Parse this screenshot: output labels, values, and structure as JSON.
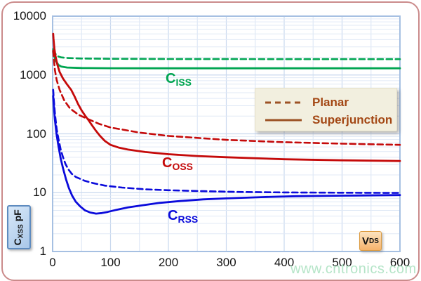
{
  "chart_data": {
    "type": "line",
    "title": "",
    "xlabel": "VDS",
    "ylabel": "CXSS pF",
    "grid": true,
    "legend_position": "upper-right-inside",
    "x_axis": {
      "min": 0,
      "max": 600,
      "ticks": [
        0,
        100,
        200,
        300,
        400,
        500,
        600
      ],
      "minor_step": 50
    },
    "y_axis": {
      "scale": "log",
      "min": 1,
      "max": 10000,
      "ticks": [
        "10000",
        "1000",
        "100",
        "10",
        "1"
      ]
    },
    "series": [
      {
        "id": "ciss_planar",
        "name": "CISS Planar",
        "color": "#00A551",
        "style": "dashed",
        "points": [
          [
            1,
            2750
          ],
          [
            3,
            2450
          ],
          [
            6,
            2200
          ],
          [
            10,
            2060
          ],
          [
            15,
            1990
          ],
          [
            25,
            1940
          ],
          [
            50,
            1905
          ],
          [
            100,
            1885
          ],
          [
            200,
            1870
          ],
          [
            300,
            1865
          ],
          [
            450,
            1860
          ],
          [
            600,
            1860
          ]
        ]
      },
      {
        "id": "ciss_superjunction",
        "name": "CISS Superjunction",
        "color": "#00A551",
        "style": "solid",
        "points": [
          [
            1,
            2500
          ],
          [
            3,
            2050
          ],
          [
            6,
            1700
          ],
          [
            10,
            1480
          ],
          [
            15,
            1390
          ],
          [
            25,
            1340
          ],
          [
            50,
            1315
          ],
          [
            100,
            1305
          ],
          [
            200,
            1300
          ],
          [
            400,
            1300
          ],
          [
            600,
            1300
          ]
        ]
      },
      {
        "id": "coss_planar",
        "name": "COSS Planar",
        "color": "#C50A0A",
        "style": "dashed",
        "points": [
          [
            1,
            2600
          ],
          [
            2,
            1900
          ],
          [
            4,
            1200
          ],
          [
            7,
            820
          ],
          [
            12,
            560
          ],
          [
            20,
            370
          ],
          [
            30,
            270
          ],
          [
            45,
            210
          ],
          [
            60,
            180
          ],
          [
            80,
            148
          ],
          [
            100,
            128
          ],
          [
            150,
            105
          ],
          [
            200,
            92
          ],
          [
            300,
            79
          ],
          [
            400,
            72
          ],
          [
            500,
            68
          ],
          [
            600,
            65
          ]
        ]
      },
      {
        "id": "coss_superjunction",
        "name": "COSS Superjunction",
        "color": "#C50A0A",
        "style": "solid",
        "points": [
          [
            1,
            5000
          ],
          [
            1.5,
            4200
          ],
          [
            2,
            3600
          ],
          [
            3,
            2800
          ],
          [
            5,
            2100
          ],
          [
            8,
            1520
          ],
          [
            12,
            1130
          ],
          [
            18,
            870
          ],
          [
            25,
            690
          ],
          [
            32,
            560
          ],
          [
            38,
            430
          ],
          [
            44,
            320
          ],
          [
            50,
            250
          ],
          [
            56,
            205
          ],
          [
            62,
            170
          ],
          [
            68,
            140
          ],
          [
            75,
            112
          ],
          [
            82,
            92
          ],
          [
            90,
            76
          ],
          [
            100,
            65
          ],
          [
            115,
            58
          ],
          [
            130,
            54
          ],
          [
            160,
            49
          ],
          [
            200,
            45
          ],
          [
            250,
            42
          ],
          [
            300,
            40
          ],
          [
            400,
            37
          ],
          [
            500,
            35.5
          ],
          [
            600,
            34.5
          ]
        ]
      },
      {
        "id": "crss_planar",
        "name": "CRSS Planar",
        "color": "#0B0BDB",
        "style": "dashed",
        "points": [
          [
            1,
            560
          ],
          [
            2,
            380
          ],
          [
            4,
            220
          ],
          [
            7,
            120
          ],
          [
            10,
            82
          ],
          [
            14,
            54
          ],
          [
            18,
            40
          ],
          [
            22,
            31
          ],
          [
            27,
            25
          ],
          [
            33,
            21
          ],
          [
            40,
            18.5
          ],
          [
            55,
            16
          ],
          [
            70,
            14.5
          ],
          [
            90,
            13.2
          ],
          [
            120,
            12.2
          ],
          [
            160,
            11.4
          ],
          [
            200,
            11
          ],
          [
            260,
            10.6
          ],
          [
            320,
            10.3
          ],
          [
            400,
            10.1
          ],
          [
            500,
            10
          ],
          [
            600,
            9.9
          ]
        ]
      },
      {
        "id": "crss_superjunction",
        "name": "CRSS Superjunction",
        "color": "#0B0BDB",
        "style": "solid",
        "points": [
          [
            1,
            440
          ],
          [
            2,
            300
          ],
          [
            4,
            170
          ],
          [
            7,
            95
          ],
          [
            10,
            62
          ],
          [
            14,
            38
          ],
          [
            18,
            26
          ],
          [
            23,
            17
          ],
          [
            28,
            12
          ],
          [
            34,
            8.8
          ],
          [
            40,
            7
          ],
          [
            48,
            5.8
          ],
          [
            56,
            5
          ],
          [
            65,
            4.6
          ],
          [
            75,
            4.4
          ],
          [
            85,
            4.5
          ],
          [
            95,
            4.7
          ],
          [
            110,
            5.1
          ],
          [
            130,
            5.6
          ],
          [
            155,
            6.1
          ],
          [
            185,
            6.7
          ],
          [
            220,
            7.2
          ],
          [
            260,
            7.7
          ],
          [
            300,
            8
          ],
          [
            360,
            8.4
          ],
          [
            420,
            8.7
          ],
          [
            500,
            8.9
          ],
          [
            600,
            9.1
          ]
        ]
      }
    ]
  },
  "curve_labels": {
    "ciss": {
      "main": "C",
      "sub": "ISS"
    },
    "coss": {
      "main": "C",
      "sub": "OSS"
    },
    "crss": {
      "main": "C",
      "sub": "RSS"
    }
  },
  "legend": {
    "planar": "Planar",
    "superjunction": "Superjunction"
  },
  "y_badge": {
    "main": "C",
    "sub": "XSS",
    "unit": "pF"
  },
  "x_badge": {
    "main": "V",
    "sub": "DS"
  },
  "watermark": "www.cntronics.com",
  "colors": {
    "green": "#00A551",
    "red": "#C50A0A",
    "blue": "#0B0BDB",
    "frame_border": "#cb8b8b",
    "plot_border": "#a6c0e2",
    "grid_minor": "#e0e9f6",
    "grid_major": "#c9d8ee",
    "legend_text": "#A34714",
    "legend_line": "#9C5224",
    "watermark": "#b2e4c6"
  }
}
